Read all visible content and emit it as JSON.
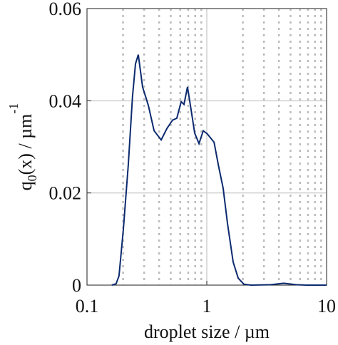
{
  "chart_data": {
    "type": "line",
    "xlabel": "droplet size / µm",
    "ylabel": [
      {
        "text": "q"
      },
      {
        "text": "0",
        "shift": "sub"
      },
      {
        "text": "(x) / µm"
      },
      {
        "text": "-1",
        "shift": "super"
      }
    ],
    "x": [
      0.161,
      0.175,
      0.185,
      0.201,
      0.221,
      0.24,
      0.254,
      0.268,
      0.291,
      0.325,
      0.363,
      0.416,
      0.465,
      0.518,
      0.562,
      0.611,
      0.645,
      0.69,
      0.74,
      0.792,
      0.861,
      0.934,
      1.01,
      1.15,
      1.25,
      1.37,
      1.49,
      1.66,
      1.83,
      2.04,
      2.34,
      3.43,
      4.39,
      5.55,
      6.8,
      10
    ],
    "series": [
      {
        "color": "#0b2a6e",
        "values": [
          0,
          0.0003,
          0.002,
          0.012,
          0.026,
          0.041,
          0.048,
          0.05,
          0.043,
          0.039,
          0.0335,
          0.0315,
          0.034,
          0.0358,
          0.0362,
          0.0398,
          0.0392,
          0.043,
          0.038,
          0.033,
          0.0307,
          0.0335,
          0.0328,
          0.031,
          0.026,
          0.021,
          0.0133,
          0.005,
          0.0015,
          0.0002,
          0,
          0.0001,
          0.0004,
          0.0001,
          0,
          0
        ]
      }
    ],
    "xscale": "log",
    "xlim": [
      0.1,
      10
    ],
    "xticks": [
      0.1,
      1,
      10
    ],
    "xminorticks": [
      0.2,
      0.3,
      0.4,
      0.5,
      0.6,
      0.7,
      0.8,
      0.9,
      2,
      3,
      4,
      5,
      6,
      7,
      8,
      9
    ],
    "ylim": [
      0,
      0.06
    ],
    "yticks": [
      0,
      0.02,
      0.04,
      0.06
    ],
    "grid": true
  }
}
